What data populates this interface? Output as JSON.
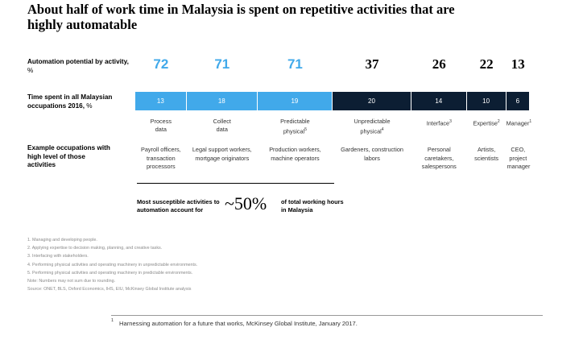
{
  "title": "About half of work time in Malaysia is spent on repetitive activities that are highly automatable",
  "row_labels": {
    "potential_bold": "Automation potential by activity,",
    "potential_unit": " %",
    "time_bold": "Time spent in all Malaysian occupations 2016,",
    "time_unit": " %",
    "examples": "Example occupations with high level of those activities"
  },
  "colors": {
    "highly_automatable": "#41a9ea",
    "less_automatable": "#0c1e33"
  },
  "chart_data": {
    "type": "bar",
    "categories": [
      "Process data",
      "Collect data",
      "Predictable physical",
      "Unpredictable physical",
      "Interface",
      "Expertise",
      "Manager"
    ],
    "category_footnotes": [
      "",
      "",
      "5",
      "4",
      "3",
      "2",
      "1"
    ],
    "automation_potential": [
      72,
      71,
      71,
      37,
      26,
      22,
      13
    ],
    "time_spent": [
      13,
      18,
      19,
      20,
      14,
      10,
      6
    ],
    "example_occupations": [
      "Payroll officers, transaction processors",
      "Legal support workers, mortgage originators",
      "Production workers, machine operators",
      "Gardeners, construction labors",
      "Personal caretakers, salespersons",
      "Artists, scientists",
      "CEO, project manager"
    ]
  },
  "callout": {
    "left": "Most susceptible activities to automation account for",
    "value": "~50%",
    "right": "of total working hours in Malaysia"
  },
  "notes": [
    "1. Managing and developing people.",
    "2. Applying expertise to decision making, planning, and creative tasks.",
    "3. Interfacing with stakeholders.",
    "4. Performing physical activities and operating machinery in unpredictable environments.",
    "5. Performing physical activities and operating machinery in predictable environments.",
    "Note: Numbers may not sum due to rounding.",
    "Source: ONET, BLS, Oxford Economics, IHS, EIU, McKinsey Global Institute analysis"
  ],
  "footnote": {
    "number": "1",
    "text": "Harnessing automation for a future that works, McKinsey Global Institute, January 2017."
  }
}
